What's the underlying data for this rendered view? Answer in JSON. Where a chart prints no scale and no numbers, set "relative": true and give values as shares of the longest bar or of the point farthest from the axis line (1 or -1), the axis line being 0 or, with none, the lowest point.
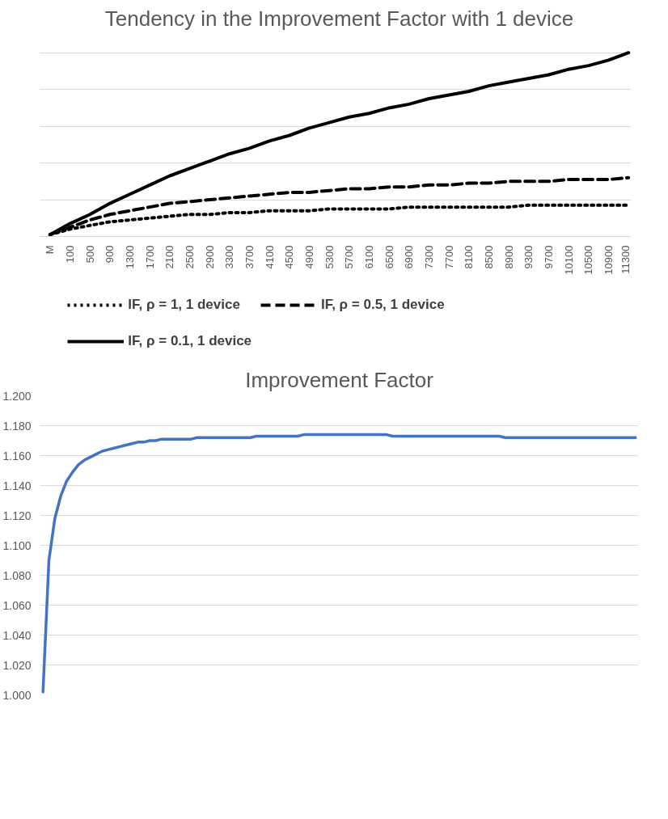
{
  "chart_data": [
    {
      "type": "line",
      "title": "Tendency in the Improvement Factor with 1 device",
      "relative": true,
      "grid": "y",
      "legend": "bottom",
      "tick_labels": "x",
      "categories": [
        "M",
        "100",
        "500",
        "900",
        "1300",
        "1700",
        "2100",
        "2500",
        "2900",
        "3300",
        "3700",
        "4100",
        "4500",
        "4900",
        "5300",
        "5700",
        "6100",
        "6500",
        "6900",
        "7300",
        "7700",
        "8100",
        "8500",
        "8900",
        "9300",
        "9700",
        "10100",
        "10500",
        "10900",
        "11300"
      ],
      "series": [
        {
          "name": "IF, ρ = 1, 1 device",
          "color": "#000000",
          "line_style": "dotted",
          "values": [
            0.01,
            0.04,
            0.06,
            0.08,
            0.09,
            0.1,
            0.11,
            0.12,
            0.12,
            0.13,
            0.13,
            0.14,
            0.14,
            0.14,
            0.15,
            0.15,
            0.15,
            0.15,
            0.16,
            0.16,
            0.16,
            0.16,
            0.16,
            0.16,
            0.17,
            0.17,
            0.17,
            0.17,
            0.17,
            0.17
          ]
        },
        {
          "name": "IF, ρ = 0.5, 1 device",
          "color": "#000000",
          "line_style": "dashed",
          "values": [
            0.01,
            0.05,
            0.09,
            0.12,
            0.14,
            0.16,
            0.18,
            0.19,
            0.2,
            0.21,
            0.22,
            0.23,
            0.24,
            0.24,
            0.25,
            0.26,
            0.26,
            0.27,
            0.27,
            0.28,
            0.28,
            0.29,
            0.29,
            0.3,
            0.3,
            0.3,
            0.31,
            0.31,
            0.31,
            0.32
          ]
        },
        {
          "name": "IF, ρ = 0.1, 1 device",
          "color": "#000000",
          "line_style": "solid",
          "values": [
            0.01,
            0.07,
            0.12,
            0.18,
            0.23,
            0.28,
            0.33,
            0.37,
            0.41,
            0.45,
            0.48,
            0.52,
            0.55,
            0.59,
            0.62,
            0.65,
            0.67,
            0.7,
            0.72,
            0.75,
            0.77,
            0.79,
            0.82,
            0.84,
            0.86,
            0.88,
            0.91,
            0.93,
            0.96,
            1.0
          ]
        }
      ]
    },
    {
      "type": "line",
      "title": "Improvement Factor",
      "grid": "y",
      "tick_labels": "y",
      "ylim": [
        1.0,
        1.2
      ],
      "yticks": [
        {
          "value": 1.0,
          "label": "1.000"
        },
        {
          "value": 1.02,
          "label": "1.020"
        },
        {
          "value": 1.04,
          "label": "1.040"
        },
        {
          "value": 1.06,
          "label": "1.060"
        },
        {
          "value": 1.08,
          "label": "1.080"
        },
        {
          "value": 1.1,
          "label": "1.100"
        },
        {
          "value": 1.12,
          "label": "1.120"
        },
        {
          "value": 1.14,
          "label": "1.140"
        },
        {
          "value": 1.16,
          "label": "1.160"
        },
        {
          "value": 1.18,
          "label": "1.180"
        },
        {
          "value": 1.2,
          "label": "1.200"
        }
      ],
      "categories": [
        null,
        null,
        null,
        null,
        null,
        null,
        null,
        null,
        null,
        null,
        null,
        null,
        null,
        null,
        null,
        null,
        null,
        null,
        null,
        null,
        null,
        null,
        null,
        null,
        null,
        null,
        null,
        null,
        null,
        null,
        null,
        null,
        null,
        null,
        null,
        null,
        null,
        null,
        null,
        null,
        null,
        null,
        null,
        null,
        null,
        null,
        null,
        null,
        null,
        null,
        null,
        null,
        null,
        null,
        null,
        null,
        null,
        null,
        null,
        null,
        null,
        null,
        null,
        null,
        null,
        null,
        null,
        null,
        null,
        null,
        null,
        null,
        null,
        null,
        null,
        null,
        null,
        null,
        null,
        null,
        null,
        null,
        null,
        null,
        null,
        null,
        null,
        null,
        null,
        null,
        null,
        null,
        null,
        null,
        null,
        null,
        null,
        null,
        null,
        null,
        null
      ],
      "series": [
        {
          "color": "#4472c4",
          "values": [
            1.002,
            1.09,
            1.118,
            1.133,
            1.143,
            1.149,
            1.154,
            1.157,
            1.159,
            1.161,
            1.163,
            1.164,
            1.165,
            1.166,
            1.167,
            1.168,
            1.169,
            1.169,
            1.17,
            1.17,
            1.171,
            1.171,
            1.171,
            1.171,
            1.171,
            1.171,
            1.172,
            1.172,
            1.172,
            1.172,
            1.172,
            1.172,
            1.172,
            1.172,
            1.172,
            1.172,
            1.173,
            1.173,
            1.173,
            1.173,
            1.173,
            1.173,
            1.173,
            1.173,
            1.174,
            1.174,
            1.174,
            1.174,
            1.174,
            1.174,
            1.174,
            1.174,
            1.174,
            1.174,
            1.174,
            1.174,
            1.174,
            1.174,
            1.174,
            1.173,
            1.173,
            1.173,
            1.173,
            1.173,
            1.173,
            1.173,
            1.173,
            1.173,
            1.173,
            1.173,
            1.173,
            1.173,
            1.173,
            1.173,
            1.173,
            1.173,
            1.173,
            1.173,
            1.172,
            1.172,
            1.172,
            1.172,
            1.172,
            1.172,
            1.172,
            1.172,
            1.172,
            1.172,
            1.172,
            1.172,
            1.172,
            1.172,
            1.172,
            1.172,
            1.172,
            1.172,
            1.172,
            1.172,
            1.172,
            1.172,
            1.172
          ]
        }
      ]
    }
  ]
}
